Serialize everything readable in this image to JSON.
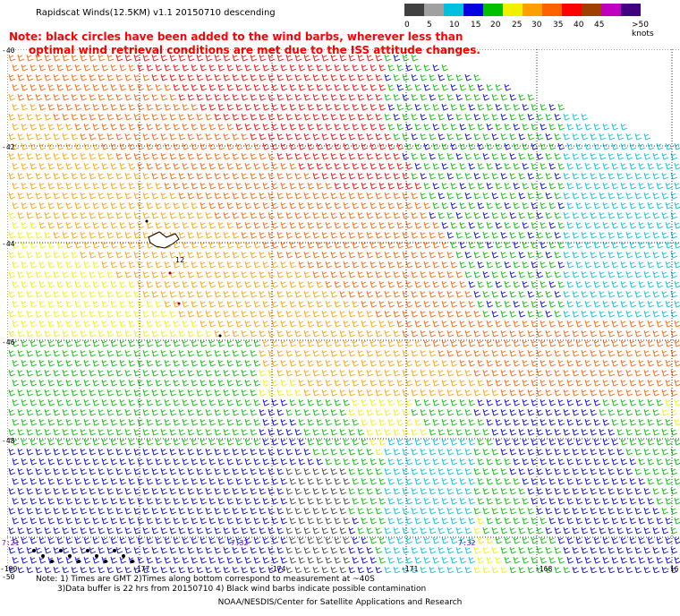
{
  "title": "Rapidscat Winds(12.5KM) v1.1 20150710 descending",
  "note_line1": "Note: black circles have been added to the wind barbs, wherever less than",
  "note_line2": "optimal wind retrieval conditions are met due to the ISS attitude changes.",
  "scale": {
    "labels": [
      "0",
      "5",
      "10",
      "15",
      "20",
      "25",
      "30",
      "35",
      "40",
      "45",
      ">50 knots"
    ],
    "colors": [
      "#404040",
      "#a0a0a0",
      "#00c0e0",
      "#0000e0",
      "#00c000",
      "#f0f000",
      "#ffa000",
      "#ff6000",
      "#ff0000",
      "#a04000",
      "#c000c0",
      "#400080"
    ]
  },
  "lat_labels": [
    "-40",
    "-42",
    "-44",
    "-46",
    "-48",
    "-50"
  ],
  "lon_labels": [
    "-180",
    "-177",
    "-174",
    "-171",
    "-168",
    "-16"
  ],
  "time_labels": [
    "7:21",
    "7:32",
    "7:32"
  ],
  "island_label": "12",
  "footer_lines": [
    "Note: 1) Times are GMT 2)Times along bottom correspond to measurement at ~40S",
    "3)Data buffer is 22 hrs from 20150710 4) Black wind barbs indicate possible contamination"
  ],
  "credit": "NOAA/NESDIS/Center for Satellite Applications and Research"
}
